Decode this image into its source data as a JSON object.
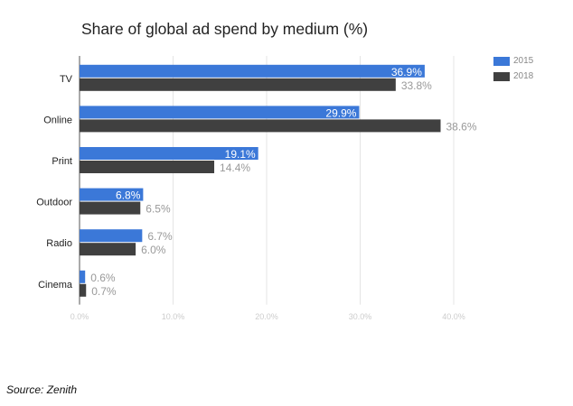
{
  "chart_data": {
    "type": "bar",
    "orientation": "horizontal",
    "title": "Share of global ad spend by medium (%)",
    "categories": [
      "TV",
      "Online",
      "Print",
      "Outdoor",
      "Radio",
      "Cinema"
    ],
    "series": [
      {
        "name": "2015",
        "color": "#3b78d8",
        "values": [
          36.9,
          29.9,
          19.1,
          6.8,
          6.7,
          0.6
        ],
        "labels": [
          "36.9%",
          "29.9%",
          "19.1%",
          "6.8%",
          "6.7%",
          "0.6%"
        ],
        "label_inside": [
          true,
          true,
          true,
          true,
          false,
          false
        ]
      },
      {
        "name": "2018",
        "color": "#404040",
        "values": [
          33.8,
          38.6,
          14.4,
          6.5,
          6.0,
          0.7
        ],
        "labels": [
          "33.8%",
          "38.6%",
          "14.4%",
          "6.5%",
          "6.0%",
          "0.7%"
        ],
        "label_inside": [
          false,
          false,
          false,
          false,
          false,
          false
        ]
      }
    ],
    "xlim": [
      0,
      40
    ],
    "xticks": [
      "0.0%",
      "10.0%",
      "20.0%",
      "30.0%",
      "40.0%"
    ],
    "grid": true,
    "legend": "top-right"
  },
  "source": "Source: Zenith"
}
